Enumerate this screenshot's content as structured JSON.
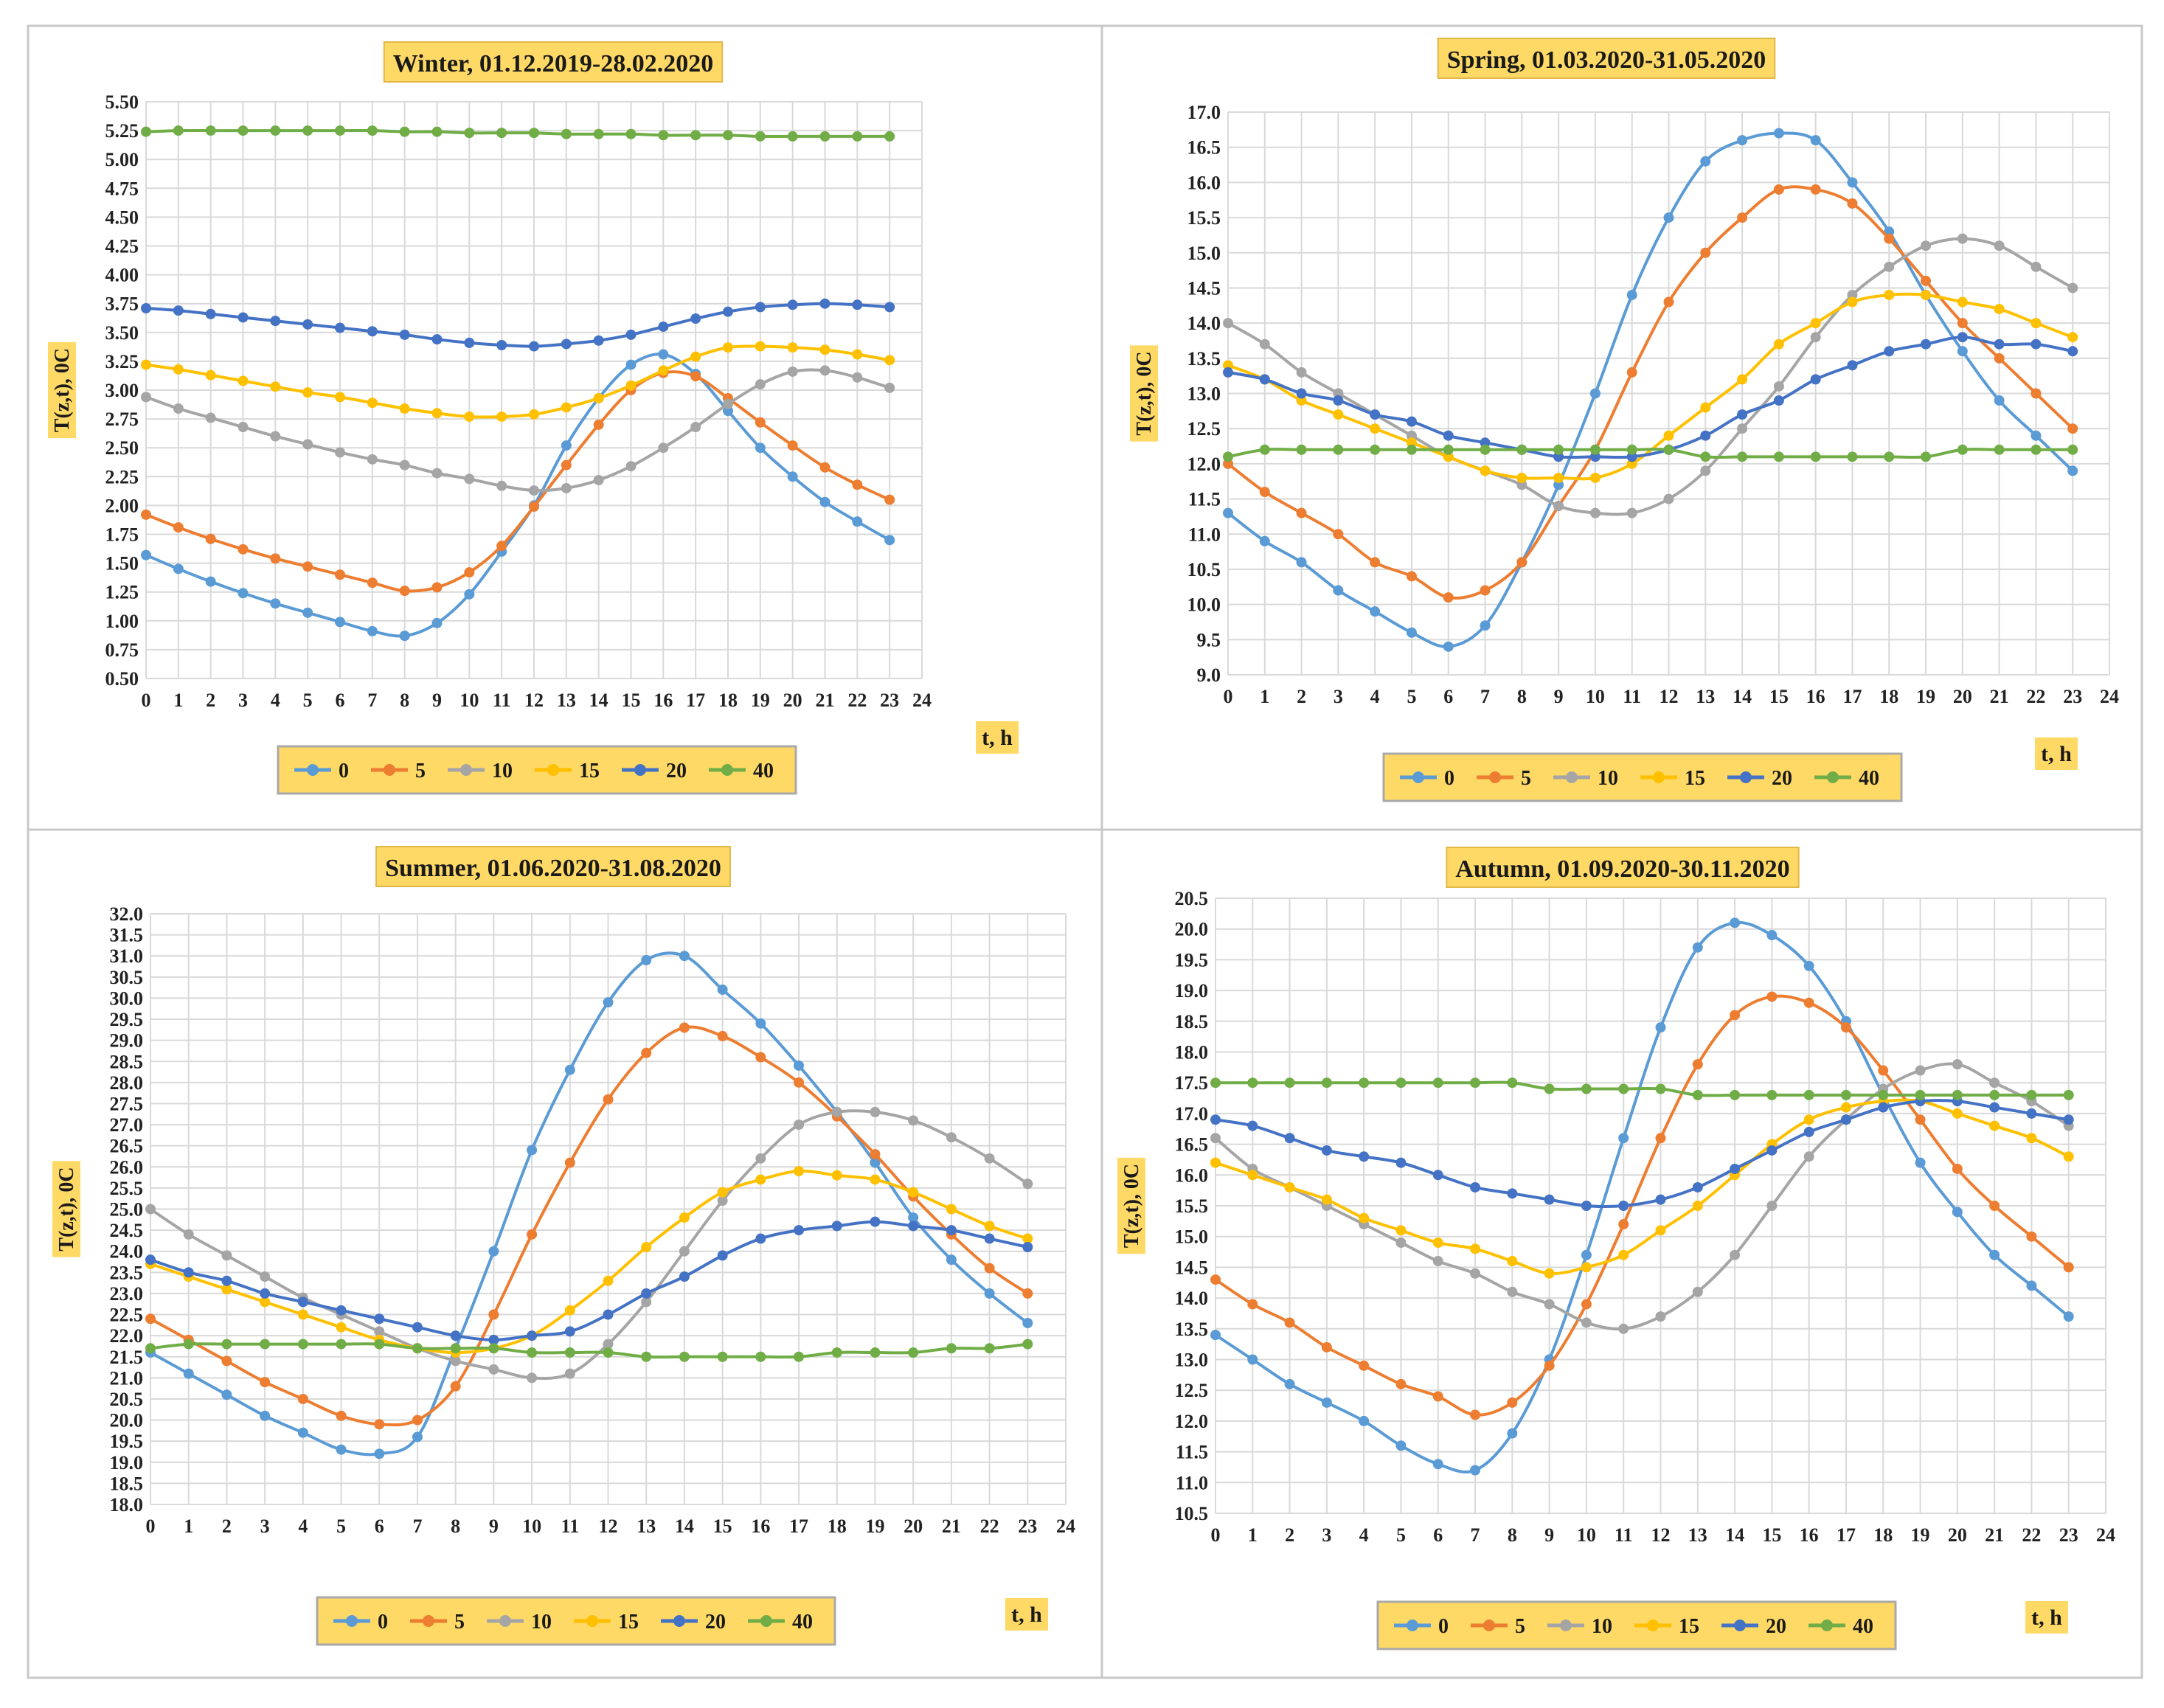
{
  "chart_data": [
    {
      "type": "line",
      "title": "Winter, 01.12.2019-28.02.2020",
      "xlabel": "t, h",
      "ylabel": "T(z,t), 0C",
      "xlim": [
        0,
        24
      ],
      "ylim": [
        0.5,
        5.5
      ],
      "ystep": 0.25,
      "ytick_decimals": 2,
      "x_ticks": [
        0,
        1,
        2,
        3,
        4,
        5,
        6,
        7,
        8,
        9,
        10,
        11,
        12,
        13,
        14,
        15,
        16,
        17,
        18,
        19,
        20,
        21,
        22,
        23,
        24
      ],
      "x": [
        0,
        1,
        2,
        3,
        4,
        5,
        6,
        7,
        8,
        9,
        10,
        11,
        12,
        13,
        14,
        15,
        16,
        17,
        18,
        19,
        20,
        21,
        22,
        23
      ],
      "grid": true,
      "legend_position": "bottom",
      "series": [
        {
          "name": "0",
          "color": "#5b9bd5",
          "values": [
            1.57,
            1.45,
            1.34,
            1.24,
            1.15,
            1.07,
            0.99,
            0.91,
            0.87,
            0.98,
            1.23,
            1.6,
            2.0,
            2.52,
            2.93,
            3.22,
            3.31,
            3.14,
            2.82,
            2.5,
            2.25,
            2.03,
            1.86,
            1.7
          ]
        },
        {
          "name": "5",
          "color": "#ed7d31",
          "values": [
            1.92,
            1.81,
            1.71,
            1.62,
            1.54,
            1.47,
            1.4,
            1.33,
            1.26,
            1.29,
            1.42,
            1.65,
            1.99,
            2.35,
            2.7,
            3.0,
            3.15,
            3.12,
            2.93,
            2.72,
            2.52,
            2.33,
            2.18,
            2.05
          ]
        },
        {
          "name": "10",
          "color": "#a5a5a5",
          "values": [
            2.94,
            2.84,
            2.76,
            2.68,
            2.6,
            2.53,
            2.46,
            2.4,
            2.35,
            2.28,
            2.23,
            2.17,
            2.13,
            2.15,
            2.22,
            2.34,
            2.5,
            2.68,
            2.88,
            3.05,
            3.16,
            3.17,
            3.11,
            3.02
          ]
        },
        {
          "name": "15",
          "color": "#ffc000",
          "values": [
            3.22,
            3.18,
            3.13,
            3.08,
            3.03,
            2.98,
            2.94,
            2.89,
            2.84,
            2.8,
            2.77,
            2.77,
            2.79,
            2.85,
            2.93,
            3.04,
            3.17,
            3.29,
            3.37,
            3.38,
            3.37,
            3.35,
            3.31,
            3.26
          ]
        },
        {
          "name": "20",
          "color": "#4472c4",
          "values": [
            3.71,
            3.69,
            3.66,
            3.63,
            3.6,
            3.57,
            3.54,
            3.51,
            3.48,
            3.44,
            3.41,
            3.39,
            3.38,
            3.4,
            3.43,
            3.48,
            3.55,
            3.62,
            3.68,
            3.72,
            3.74,
            3.75,
            3.74,
            3.72
          ]
        },
        {
          "name": "40",
          "color": "#70ad47",
          "values": [
            5.24,
            5.25,
            5.25,
            5.25,
            5.25,
            5.25,
            5.25,
            5.25,
            5.24,
            5.24,
            5.23,
            5.23,
            5.23,
            5.22,
            5.22,
            5.22,
            5.21,
            5.21,
            5.21,
            5.2,
            5.2,
            5.2,
            5.2,
            5.2
          ]
        }
      ]
    },
    {
      "type": "line",
      "title": "Spring, 01.03.2020-31.05.2020",
      "xlabel": "t, h",
      "ylabel": "T(z,t), 0C",
      "xlim": [
        0,
        24
      ],
      "ylim": [
        9.0,
        17.0
      ],
      "ystep": 0.5,
      "ytick_decimals": 1,
      "x_ticks": [
        0,
        1,
        2,
        3,
        4,
        5,
        6,
        7,
        8,
        9,
        10,
        11,
        12,
        13,
        14,
        15,
        16,
        17,
        18,
        19,
        20,
        21,
        22,
        23,
        24
      ],
      "x": [
        0,
        1,
        2,
        3,
        4,
        5,
        6,
        7,
        8,
        9,
        10,
        11,
        12,
        13,
        14,
        15,
        16,
        17,
        18,
        19,
        20,
        21,
        22,
        23
      ],
      "grid": true,
      "legend_position": "bottom",
      "series": [
        {
          "name": "0",
          "color": "#5b9bd5",
          "values": [
            11.3,
            10.9,
            10.6,
            10.2,
            9.9,
            9.6,
            9.4,
            9.7,
            10.6,
            11.7,
            13.0,
            14.4,
            15.5,
            16.3,
            16.6,
            16.7,
            16.6,
            16.0,
            15.3,
            14.4,
            13.6,
            12.9,
            12.4,
            11.9
          ]
        },
        {
          "name": "5",
          "color": "#ed7d31",
          "values": [
            12.0,
            11.6,
            11.3,
            11.0,
            10.6,
            10.4,
            10.1,
            10.2,
            10.6,
            11.4,
            12.2,
            13.3,
            14.3,
            15.0,
            15.5,
            15.9,
            15.9,
            15.7,
            15.2,
            14.6,
            14.0,
            13.5,
            13.0,
            12.5
          ]
        },
        {
          "name": "10",
          "color": "#a5a5a5",
          "values": [
            14.0,
            13.7,
            13.3,
            13.0,
            12.7,
            12.4,
            12.1,
            11.9,
            11.7,
            11.4,
            11.3,
            11.3,
            11.5,
            11.9,
            12.5,
            13.1,
            13.8,
            14.4,
            14.8,
            15.1,
            15.2,
            15.1,
            14.8,
            14.5
          ]
        },
        {
          "name": "15",
          "color": "#ffc000",
          "values": [
            13.4,
            13.2,
            12.9,
            12.7,
            12.5,
            12.3,
            12.1,
            11.9,
            11.8,
            11.8,
            11.8,
            12.0,
            12.4,
            12.8,
            13.2,
            13.7,
            14.0,
            14.3,
            14.4,
            14.4,
            14.3,
            14.2,
            14.0,
            13.8
          ]
        },
        {
          "name": "20",
          "color": "#4472c4",
          "values": [
            13.3,
            13.2,
            13.0,
            12.9,
            12.7,
            12.6,
            12.4,
            12.3,
            12.2,
            12.1,
            12.1,
            12.1,
            12.2,
            12.4,
            12.7,
            12.9,
            13.2,
            13.4,
            13.6,
            13.7,
            13.8,
            13.7,
            13.7,
            13.6
          ]
        },
        {
          "name": "40",
          "color": "#70ad47",
          "values": [
            12.1,
            12.2,
            12.2,
            12.2,
            12.2,
            12.2,
            12.2,
            12.2,
            12.2,
            12.2,
            12.2,
            12.2,
            12.2,
            12.1,
            12.1,
            12.1,
            12.1,
            12.1,
            12.1,
            12.1,
            12.2,
            12.2,
            12.2,
            12.2
          ]
        }
      ]
    },
    {
      "type": "line",
      "title": "Summer, 01.06.2020-31.08.2020",
      "xlabel": "t, h",
      "ylabel": "T(z,t), 0C",
      "xlim": [
        0,
        24
      ],
      "ylim": [
        18.0,
        32.0
      ],
      "ystep": 0.5,
      "ytick_decimals": 1,
      "x_ticks": [
        0,
        1,
        2,
        3,
        4,
        5,
        6,
        7,
        8,
        9,
        10,
        11,
        12,
        13,
        14,
        15,
        16,
        17,
        18,
        19,
        20,
        21,
        22,
        23,
        24
      ],
      "x": [
        0,
        1,
        2,
        3,
        4,
        5,
        6,
        7,
        8,
        9,
        10,
        11,
        12,
        13,
        14,
        15,
        16,
        17,
        18,
        19,
        20,
        21,
        22,
        23
      ],
      "grid": true,
      "legend_position": "bottom",
      "series": [
        {
          "name": "0",
          "color": "#5b9bd5",
          "values": [
            21.6,
            21.1,
            20.6,
            20.1,
            19.7,
            19.3,
            19.2,
            19.6,
            21.7,
            24.0,
            26.4,
            28.3,
            29.9,
            30.9,
            31.0,
            30.2,
            29.4,
            28.4,
            27.3,
            26.1,
            24.8,
            23.8,
            23.0,
            22.3
          ]
        },
        {
          "name": "5",
          "color": "#ed7d31",
          "values": [
            22.4,
            21.9,
            21.4,
            20.9,
            20.5,
            20.1,
            19.9,
            20.0,
            20.8,
            22.5,
            24.4,
            26.1,
            27.6,
            28.7,
            29.3,
            29.1,
            28.6,
            28.0,
            27.2,
            26.3,
            25.3,
            24.4,
            23.6,
            23.0
          ]
        },
        {
          "name": "10",
          "color": "#a5a5a5",
          "values": [
            25.0,
            24.4,
            23.9,
            23.4,
            22.9,
            22.5,
            22.1,
            21.7,
            21.4,
            21.2,
            21.0,
            21.1,
            21.8,
            22.8,
            24.0,
            25.2,
            26.2,
            27.0,
            27.3,
            27.3,
            27.1,
            26.7,
            26.2,
            25.6
          ]
        },
        {
          "name": "15",
          "color": "#ffc000",
          "values": [
            23.7,
            23.4,
            23.1,
            22.8,
            22.5,
            22.2,
            21.9,
            21.7,
            21.6,
            21.7,
            22.0,
            22.6,
            23.3,
            24.1,
            24.8,
            25.4,
            25.7,
            25.9,
            25.8,
            25.7,
            25.4,
            25.0,
            24.6,
            24.3
          ]
        },
        {
          "name": "20",
          "color": "#4472c4",
          "values": [
            23.8,
            23.5,
            23.3,
            23.0,
            22.8,
            22.6,
            22.4,
            22.2,
            22.0,
            21.9,
            22.0,
            22.1,
            22.5,
            23.0,
            23.4,
            23.9,
            24.3,
            24.5,
            24.6,
            24.7,
            24.6,
            24.5,
            24.3,
            24.1
          ]
        },
        {
          "name": "40",
          "color": "#70ad47",
          "values": [
            21.7,
            21.8,
            21.8,
            21.8,
            21.8,
            21.8,
            21.8,
            21.7,
            21.7,
            21.7,
            21.6,
            21.6,
            21.6,
            21.5,
            21.5,
            21.5,
            21.5,
            21.5,
            21.6,
            21.6,
            21.6,
            21.7,
            21.7,
            21.8
          ]
        }
      ]
    },
    {
      "type": "line",
      "title": "Autumn, 01.09.2020-30.11.2020",
      "xlabel": "t, h",
      "ylabel": "T(z,t), 0C",
      "xlim": [
        0,
        24
      ],
      "ylim": [
        10.5,
        20.5
      ],
      "ystep": 0.5,
      "ytick_decimals": 1,
      "x_ticks": [
        0,
        1,
        2,
        3,
        4,
        5,
        6,
        7,
        8,
        9,
        10,
        11,
        12,
        13,
        14,
        15,
        16,
        17,
        18,
        19,
        20,
        21,
        22,
        23,
        24
      ],
      "x": [
        0,
        1,
        2,
        3,
        4,
        5,
        6,
        7,
        8,
        9,
        10,
        11,
        12,
        13,
        14,
        15,
        16,
        17,
        18,
        19,
        20,
        21,
        22,
        23
      ],
      "grid": true,
      "legend_position": "bottom",
      "series": [
        {
          "name": "0",
          "color": "#5b9bd5",
          "values": [
            13.4,
            13.0,
            12.6,
            12.3,
            12.0,
            11.6,
            11.3,
            11.2,
            11.8,
            13.0,
            14.7,
            16.6,
            18.4,
            19.7,
            20.1,
            19.9,
            19.4,
            18.5,
            17.3,
            16.2,
            15.4,
            14.7,
            14.2,
            13.7
          ]
        },
        {
          "name": "5",
          "color": "#ed7d31",
          "values": [
            14.3,
            13.9,
            13.6,
            13.2,
            12.9,
            12.6,
            12.4,
            12.1,
            12.3,
            12.9,
            13.9,
            15.2,
            16.6,
            17.8,
            18.6,
            18.9,
            18.8,
            18.4,
            17.7,
            16.9,
            16.1,
            15.5,
            15.0,
            14.5
          ]
        },
        {
          "name": "10",
          "color": "#a5a5a5",
          "values": [
            16.6,
            16.1,
            15.8,
            15.5,
            15.2,
            14.9,
            14.6,
            14.4,
            14.1,
            13.9,
            13.6,
            13.5,
            13.7,
            14.1,
            14.7,
            15.5,
            16.3,
            16.9,
            17.4,
            17.7,
            17.8,
            17.5,
            17.2,
            16.8
          ]
        },
        {
          "name": "15",
          "color": "#ffc000",
          "values": [
            16.2,
            16.0,
            15.8,
            15.6,
            15.3,
            15.1,
            14.9,
            14.8,
            14.6,
            14.4,
            14.5,
            14.7,
            15.1,
            15.5,
            16.0,
            16.5,
            16.9,
            17.1,
            17.2,
            17.2,
            17.0,
            16.8,
            16.6,
            16.3
          ]
        },
        {
          "name": "20",
          "color": "#4472c4",
          "values": [
            16.9,
            16.8,
            16.6,
            16.4,
            16.3,
            16.2,
            16.0,
            15.8,
            15.7,
            15.6,
            15.5,
            15.5,
            15.6,
            15.8,
            16.1,
            16.4,
            16.7,
            16.9,
            17.1,
            17.2,
            17.2,
            17.1,
            17.0,
            16.9
          ]
        },
        {
          "name": "40",
          "color": "#70ad47",
          "values": [
            17.5,
            17.5,
            17.5,
            17.5,
            17.5,
            17.5,
            17.5,
            17.5,
            17.5,
            17.4,
            17.4,
            17.4,
            17.4,
            17.3,
            17.3,
            17.3,
            17.3,
            17.3,
            17.3,
            17.3,
            17.3,
            17.3,
            17.3,
            17.3
          ]
        }
      ]
    }
  ]
}
